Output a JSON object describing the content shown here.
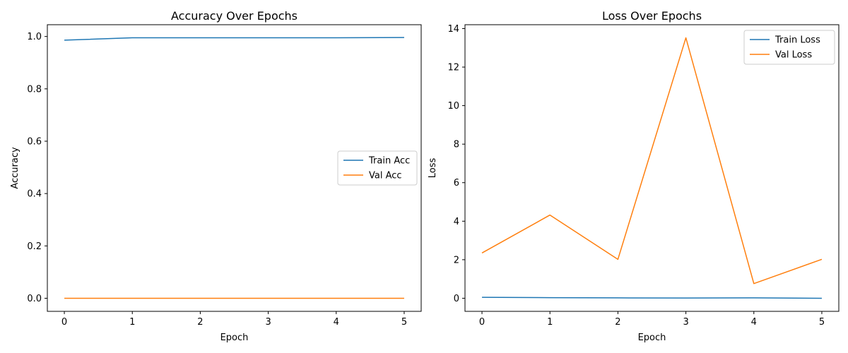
{
  "chart_data": [
    {
      "type": "line",
      "title": "Accuracy Over Epochs",
      "xlabel": "Epoch",
      "ylabel": "Accuracy",
      "x": [
        0,
        1,
        2,
        3,
        4,
        5
      ],
      "xlim": [
        -0.25,
        5.25
      ],
      "ylim": [
        -0.05,
        1.045
      ],
      "xticks": [
        0,
        1,
        2,
        3,
        4,
        5
      ],
      "yticks": [
        0.0,
        0.2,
        0.4,
        0.6,
        0.8,
        1.0
      ],
      "ytick_labels": [
        "0.0",
        "0.2",
        "0.4",
        "0.6",
        "0.8",
        "1.0"
      ],
      "grid": false,
      "legend_position": "center-right",
      "series": [
        {
          "name": "Train Acc",
          "color": "#1f77b4",
          "values": [
            0.986,
            0.995,
            0.995,
            0.995,
            0.995,
            0.996
          ]
        },
        {
          "name": "Val Acc",
          "color": "#ff7f0e",
          "values": [
            0.0,
            0.0,
            0.0,
            0.0,
            0.0,
            0.0
          ]
        }
      ]
    },
    {
      "type": "line",
      "title": "Loss Over Epochs",
      "xlabel": "Epoch",
      "ylabel": "Loss",
      "x": [
        0,
        1,
        2,
        3,
        4,
        5
      ],
      "xlim": [
        -0.25,
        5.25
      ],
      "ylim": [
        -0.68,
        14.2
      ],
      "xticks": [
        0,
        1,
        2,
        3,
        4,
        5
      ],
      "yticks": [
        0,
        2,
        4,
        6,
        8,
        10,
        12,
        14
      ],
      "ytick_labels": [
        "0",
        "2",
        "4",
        "6",
        "8",
        "10",
        "12",
        "14"
      ],
      "grid": false,
      "legend_position": "top-right",
      "series": [
        {
          "name": "Train Loss",
          "color": "#1f77b4",
          "values": [
            0.05,
            0.03,
            0.02,
            0.01,
            0.02,
            0.0
          ]
        },
        {
          "name": "Val Loss",
          "color": "#ff7f0e",
          "values": [
            2.35,
            4.32,
            2.02,
            13.52,
            0.76,
            2.02
          ]
        }
      ]
    }
  ]
}
